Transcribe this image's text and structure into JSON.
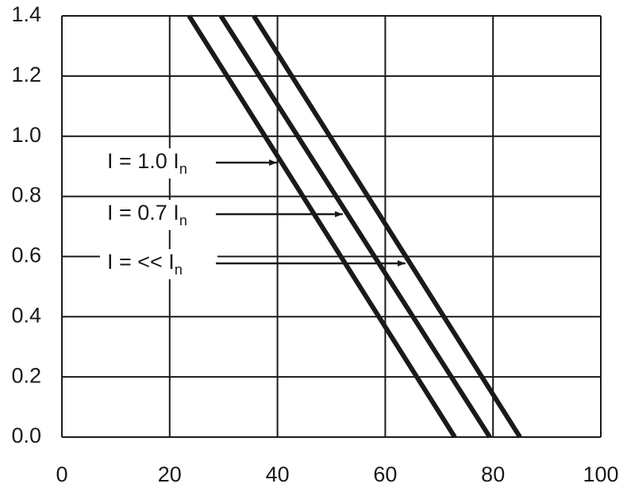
{
  "chart_data": {
    "type": "line",
    "xlim": [
      0,
      100
    ],
    "xticks": [
      0,
      20,
      40,
      60,
      80,
      100
    ],
    "ylim": [
      0,
      1.4
    ],
    "yticks": [
      {
        "value": 0,
        "label": "0.0"
      },
      0.2,
      0.4,
      0.6,
      0.8,
      {
        "value": 1,
        "label": "1.0"
      },
      1.2,
      1.4
    ],
    "grid": true,
    "series": [
      {
        "color": "#1a1a1a",
        "x": [
          23.6,
          72.9
        ],
        "values": [
          1.4,
          0
        ]
      },
      {
        "color": "#1a1a1a",
        "x": [
          29.5,
          79.4
        ],
        "values": [
          1.4,
          0
        ]
      },
      {
        "color": "#1a1a1a",
        "x": [
          35.6,
          85.0
        ],
        "values": [
          1.4,
          0
        ]
      }
    ],
    "annotations": [
      {
        "text": "I = 1.0 I",
        "sub": "n"
      },
      {
        "text": "I = 0.7 I",
        "sub": "n"
      },
      {
        "text": "I = << I",
        "sub": "n"
      }
    ]
  }
}
